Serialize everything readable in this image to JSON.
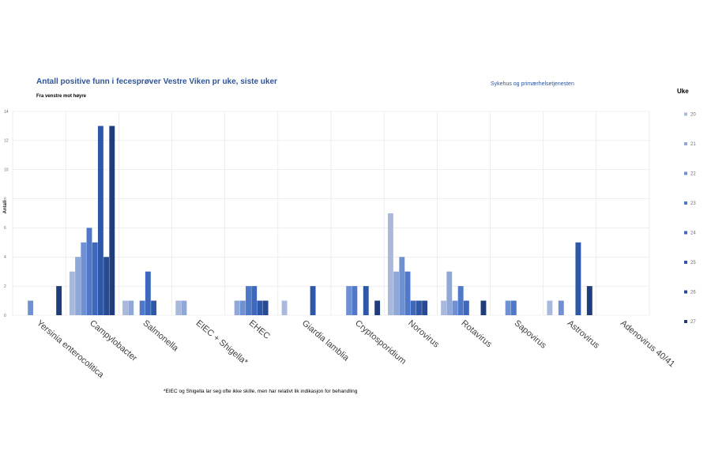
{
  "chart_data": {
    "type": "bar",
    "title": "Antall positive funn i fecesprøver Vestre Viken pr uke, siste uker",
    "subtitle": "Fra venstre mot høyre",
    "right_title": "Sykehus og primærhelsetjenesten",
    "ylabel": "Antall",
    "legend_title": "Uke",
    "legend_position": "right",
    "ylim": [
      0,
      14
    ],
    "yticks": [
      "0",
      "2",
      "4",
      "6",
      "8",
      "10",
      "12",
      "14"
    ],
    "grid": true,
    "footnote": "*EIEC og Shigella lar seg ofte ikke skille, men har relativt lik indikasjon for behandling",
    "categories": [
      "Yersinia enterocolitica",
      "Campylobacter",
      "Salmonella",
      "EIEC + Shigella*",
      "EHEC",
      "Giardia lamblia",
      "Cryptosporidium",
      "Norovirus",
      "Rotavirus",
      "Sapovirus",
      "Astrovirus",
      "Adenovirus 40/41"
    ],
    "series": [
      {
        "name": "20",
        "color": "#a9b9dc",
        "values": [
          0,
          3,
          1,
          1,
          0,
          1,
          0,
          7,
          1,
          0,
          1,
          0
        ]
      },
      {
        "name": "21",
        "color": "#8fa8d8",
        "values": [
          0,
          4,
          1,
          1,
          1,
          0,
          0,
          3,
          3,
          0,
          0,
          0
        ]
      },
      {
        "name": "22",
        "color": "#6f90d2",
        "values": [
          1,
          5,
          0,
          0,
          1,
          0,
          2,
          4,
          1,
          1,
          1,
          0
        ]
      },
      {
        "name": "23",
        "color": "#4f78c8",
        "values": [
          0,
          6,
          1,
          0,
          2,
          0,
          2,
          3,
          2,
          1,
          0,
          0
        ]
      },
      {
        "name": "24",
        "color": "#3d68bb",
        "values": [
          0,
          5,
          3,
          0,
          2,
          0,
          0,
          1,
          1,
          0,
          0,
          0
        ]
      },
      {
        "name": "25",
        "color": "#2f57a8",
        "values": [
          0,
          13,
          1,
          0,
          1,
          2,
          2,
          1,
          0,
          0,
          5,
          0
        ]
      },
      {
        "name": "26",
        "color": "#284a92",
        "values": [
          0,
          4,
          0,
          0,
          1,
          0,
          0,
          1,
          0,
          0,
          0,
          0
        ]
      },
      {
        "name": "27",
        "color": "#1f3d7a",
        "values": [
          2,
          13,
          0,
          0,
          0,
          0,
          1,
          0,
          1,
          0,
          2,
          0
        ]
      }
    ]
  }
}
